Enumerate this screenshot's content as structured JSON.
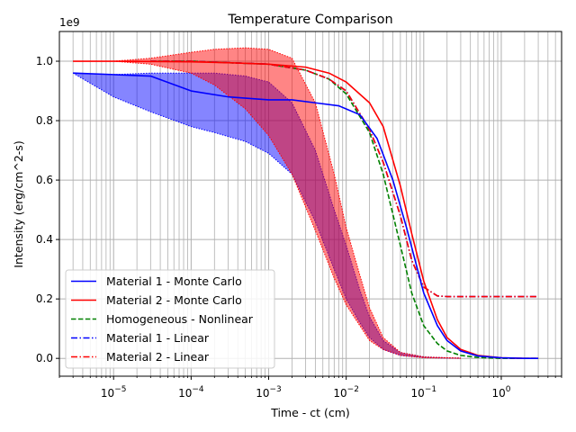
{
  "chart_data": {
    "type": "line",
    "title": "Temperature Comparison",
    "xlabel": "Time - ct (cm)",
    "ylabel": "Intensity (erg/cm^2-s)",
    "y_scale_label": "1e9",
    "x_scale": "log",
    "xlim": [
      2e-06,
      6
    ],
    "ylim": [
      -0.06,
      1.1
    ],
    "y_multiplier": 1000000000,
    "grid": true,
    "grid_minor_x": true,
    "legend_position": "lower-left",
    "x_ticks": [
      {
        "value": 1e-05,
        "base": "10",
        "exp": "−5"
      },
      {
        "value": 0.0001,
        "base": "10",
        "exp": "−4"
      },
      {
        "value": 0.001,
        "base": "10",
        "exp": "−3"
      },
      {
        "value": 0.01,
        "base": "10",
        "exp": "−2"
      },
      {
        "value": 0.1,
        "base": "10",
        "exp": "−1"
      },
      {
        "value": 1,
        "base": "10",
        "exp": "0"
      }
    ],
    "y_ticks": [
      {
        "value": 0.0,
        "label": "0.0"
      },
      {
        "value": 0.2,
        "label": "0.2"
      },
      {
        "value": 0.4,
        "label": "0.4"
      },
      {
        "value": 0.6,
        "label": "0.6"
      },
      {
        "value": 0.8,
        "label": "0.8"
      },
      {
        "value": 1.0,
        "label": "1.0"
      }
    ],
    "bands": [
      {
        "color": "#0000ff",
        "x": [
          3e-06,
          1e-05,
          3e-05,
          0.0001,
          0.0002,
          0.0005,
          0.001,
          0.002,
          0.004,
          0.007,
          0.01,
          0.015,
          0.02,
          0.03,
          0.05,
          0.1,
          0.2,
          0.3
        ],
        "upper": [
          0.96,
          0.955,
          0.96,
          0.96,
          0.96,
          0.95,
          0.93,
          0.86,
          0.7,
          0.5,
          0.38,
          0.23,
          0.14,
          0.06,
          0.02,
          0.005,
          0.002,
          0.001
        ],
        "lower": [
          0.96,
          0.88,
          0.83,
          0.78,
          0.76,
          0.73,
          0.69,
          0.62,
          0.46,
          0.3,
          0.2,
          0.12,
          0.07,
          0.03,
          0.01,
          0.003,
          0.001,
          0.0
        ]
      },
      {
        "color": "#ff0000",
        "x": [
          3e-06,
          1e-05,
          3e-05,
          0.0001,
          0.0002,
          0.0005,
          0.001,
          0.002,
          0.004,
          0.007,
          0.01,
          0.015,
          0.02,
          0.03,
          0.05,
          0.1,
          0.2,
          0.3
        ],
        "upper": [
          1.0,
          1.0,
          1.01,
          1.03,
          1.04,
          1.045,
          1.04,
          1.01,
          0.86,
          0.62,
          0.44,
          0.28,
          0.17,
          0.07,
          0.02,
          0.005,
          0.002,
          0.001
        ],
        "lower": [
          1.0,
          1.0,
          0.99,
          0.96,
          0.92,
          0.84,
          0.75,
          0.62,
          0.43,
          0.27,
          0.18,
          0.11,
          0.06,
          0.03,
          0.01,
          0.002,
          0.001,
          0.0
        ]
      }
    ],
    "series": [
      {
        "name": "Material 1 - Monte Carlo",
        "color": "#0000ff",
        "style": "solid",
        "x": [
          3e-06,
          1e-05,
          3e-05,
          0.0001,
          0.0003,
          0.001,
          0.002,
          0.004,
          0.008,
          0.015,
          0.025,
          0.04,
          0.06,
          0.1,
          0.15,
          0.2,
          0.3,
          0.5,
          1.0,
          2.0,
          3.0
        ],
        "y": [
          0.96,
          0.955,
          0.95,
          0.9,
          0.88,
          0.87,
          0.87,
          0.86,
          0.85,
          0.82,
          0.74,
          0.6,
          0.44,
          0.22,
          0.11,
          0.06,
          0.025,
          0.008,
          0.002,
          0.0,
          0.0
        ]
      },
      {
        "name": "Material 2 - Monte Carlo",
        "color": "#ff0000",
        "style": "solid",
        "x": [
          3e-06,
          1e-05,
          3e-05,
          0.0001,
          0.0003,
          0.001,
          0.003,
          0.006,
          0.01,
          0.02,
          0.03,
          0.05,
          0.07,
          0.1,
          0.15,
          0.2,
          0.3,
          0.5,
          1.0,
          2.0,
          3.0
        ],
        "y": [
          1.0,
          1.0,
          0.999,
          0.998,
          0.995,
          0.99,
          0.98,
          0.96,
          0.93,
          0.86,
          0.78,
          0.58,
          0.42,
          0.26,
          0.13,
          0.07,
          0.03,
          0.01,
          0.002,
          0.0,
          0.0
        ]
      },
      {
        "name": "Homogeneous - Nonlinear",
        "color": "#008000",
        "style": "dashed",
        "x": [
          3e-05,
          0.0001,
          0.0003,
          0.001,
          0.003,
          0.006,
          0.01,
          0.02,
          0.03,
          0.05,
          0.07,
          0.1,
          0.15,
          0.2,
          0.3,
          0.5,
          1.0,
          2.0,
          3.0
        ],
        "y": [
          1.0,
          1.0,
          0.995,
          0.99,
          0.97,
          0.94,
          0.89,
          0.76,
          0.62,
          0.38,
          0.22,
          0.11,
          0.05,
          0.025,
          0.01,
          0.003,
          0.0,
          0.0,
          0.0
        ]
      },
      {
        "name": "Material 1 - Linear",
        "color": "#0000ff",
        "style": "dashdot",
        "x": [
          3e-05,
          0.0001,
          0.0003,
          0.001,
          0.003,
          0.006,
          0.01,
          0.02,
          0.03,
          0.05,
          0.07,
          0.1,
          0.15,
          0.2,
          0.3,
          1.0,
          3.0
        ],
        "y": [
          1.0,
          1.0,
          0.995,
          0.99,
          0.97,
          0.94,
          0.9,
          0.77,
          0.66,
          0.48,
          0.33,
          0.24,
          0.21,
          0.208,
          0.208,
          0.208,
          0.208
        ]
      },
      {
        "name": "Material 2 - Linear",
        "color": "#ff0000",
        "style": "dashdot",
        "x": [
          3e-05,
          0.0001,
          0.0003,
          0.001,
          0.003,
          0.006,
          0.01,
          0.02,
          0.03,
          0.05,
          0.07,
          0.1,
          0.15,
          0.2,
          0.3,
          1.0,
          3.0
        ],
        "y": [
          1.0,
          1.0,
          0.995,
          0.99,
          0.97,
          0.94,
          0.9,
          0.77,
          0.66,
          0.48,
          0.33,
          0.24,
          0.21,
          0.208,
          0.208,
          0.208,
          0.208
        ]
      }
    ]
  }
}
